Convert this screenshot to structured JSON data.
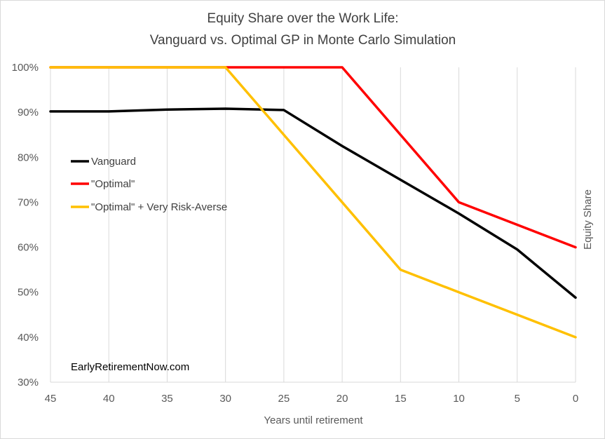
{
  "chart_data": {
    "type": "line",
    "title_line1": "Equity Share over the Work Life:",
    "title_line2": "Vanguard vs. Optimal GP in Monte Carlo Simulation",
    "xlabel": "Years until retirement",
    "ylabel": "Equity Share",
    "x": [
      45,
      40,
      35,
      30,
      25,
      20,
      15,
      10,
      5,
      0
    ],
    "x_ticks": [
      "45",
      "40",
      "35",
      "30",
      "25",
      "20",
      "15",
      "10",
      "5",
      "0"
    ],
    "x_reversed": true,
    "y_ticks": [
      "30%",
      "40%",
      "50%",
      "60%",
      "70%",
      "80%",
      "90%",
      "100%"
    ],
    "ylim": [
      0.3,
      1.0
    ],
    "grid": "vertical",
    "legend_position": "center-left",
    "series": [
      {
        "name": "Vanguard",
        "color": "#000000",
        "values": [
          0.902,
          0.902,
          0.906,
          0.908,
          0.905,
          0.825,
          0.75,
          0.675,
          0.595,
          0.488
        ]
      },
      {
        "name": "\"Optimal\"",
        "color": "#ff0000",
        "values": [
          1.0,
          1.0,
          1.0,
          1.0,
          1.0,
          1.0,
          0.85,
          0.7,
          0.65,
          0.6
        ]
      },
      {
        "name": "\"Optimal\" + Very Risk-Averse",
        "color": "#ffc000",
        "values": [
          1.0,
          1.0,
          1.0,
          1.0,
          0.85,
          0.7,
          0.55,
          0.5,
          0.45,
          0.4
        ]
      }
    ],
    "annotation": "EarlyRetirementNow.com"
  }
}
